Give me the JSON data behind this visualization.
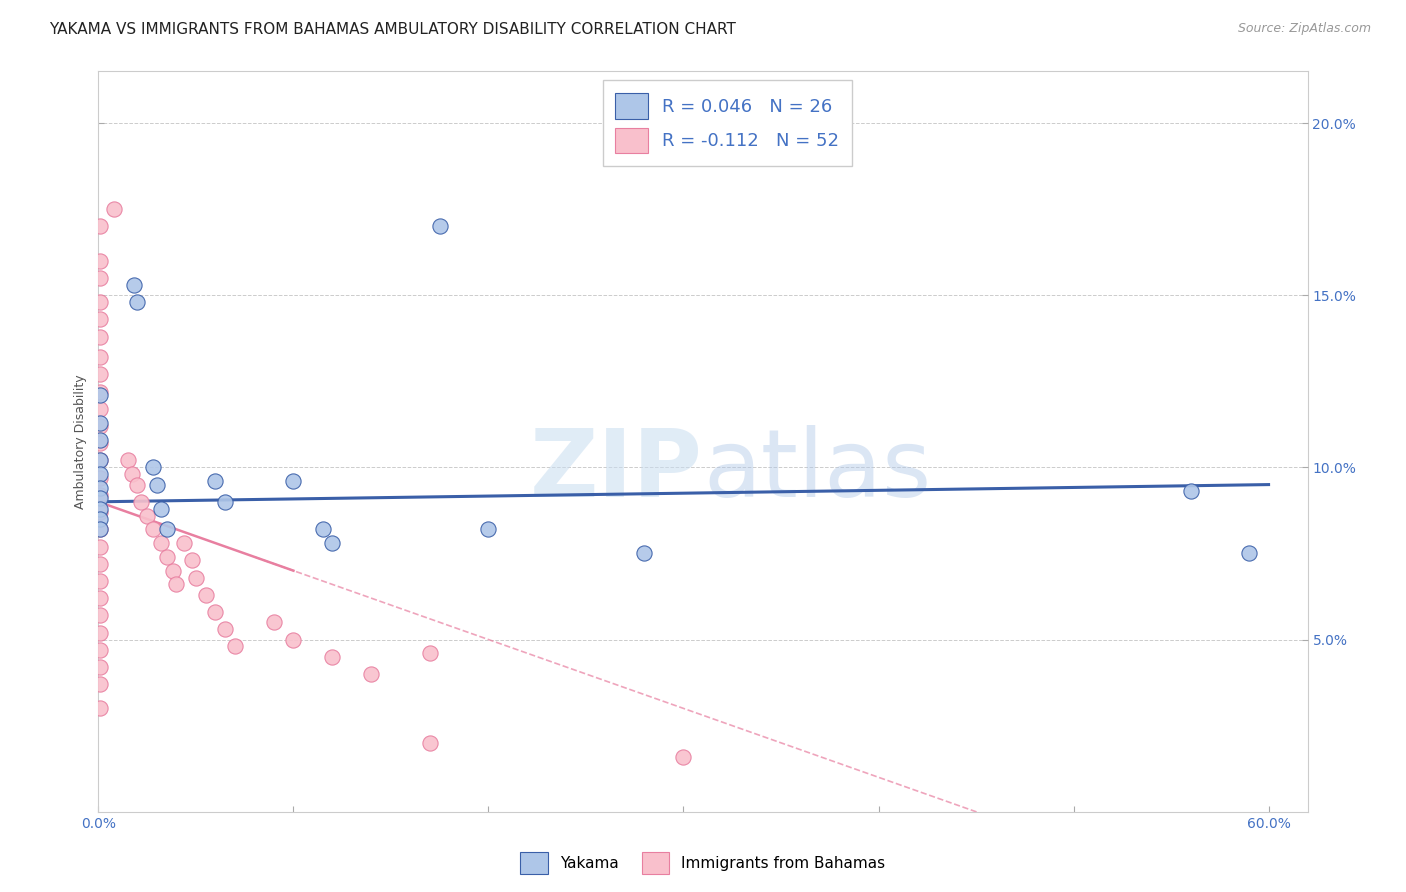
{
  "title": "YAKAMA VS IMMIGRANTS FROM BAHAMAS AMBULATORY DISABILITY CORRELATION CHART",
  "source": "Source: ZipAtlas.com",
  "ylabel": "Ambulatory Disability",
  "yakama_R": 0.046,
  "yakama_N": 26,
  "bahamas_R": -0.112,
  "bahamas_N": 52,
  "yakama_color": "#aec6e8",
  "bahamas_color": "#f9c0cc",
  "trendline_yakama_color": "#3a5fa8",
  "trendline_bahamas_color": "#e87fa0",
  "watermark_zip": "ZIP",
  "watermark_atlas": "atlas",
  "yakama_points": [
    [
      0.001,
      0.121
    ],
    [
      0.001,
      0.113
    ],
    [
      0.001,
      0.108
    ],
    [
      0.001,
      0.102
    ],
    [
      0.001,
      0.098
    ],
    [
      0.001,
      0.094
    ],
    [
      0.001,
      0.091
    ],
    [
      0.001,
      0.088
    ],
    [
      0.001,
      0.085
    ],
    [
      0.001,
      0.082
    ],
    [
      0.018,
      0.153
    ],
    [
      0.02,
      0.148
    ],
    [
      0.028,
      0.1
    ],
    [
      0.03,
      0.095
    ],
    [
      0.032,
      0.088
    ],
    [
      0.035,
      0.082
    ],
    [
      0.06,
      0.096
    ],
    [
      0.065,
      0.09
    ],
    [
      0.1,
      0.096
    ],
    [
      0.115,
      0.082
    ],
    [
      0.12,
      0.078
    ],
    [
      0.175,
      0.17
    ],
    [
      0.2,
      0.082
    ],
    [
      0.28,
      0.075
    ],
    [
      0.56,
      0.093
    ],
    [
      0.59,
      0.075
    ]
  ],
  "bahamas_points": [
    [
      0.001,
      0.17
    ],
    [
      0.001,
      0.16
    ],
    [
      0.001,
      0.155
    ],
    [
      0.001,
      0.148
    ],
    [
      0.001,
      0.143
    ],
    [
      0.001,
      0.138
    ],
    [
      0.001,
      0.132
    ],
    [
      0.001,
      0.127
    ],
    [
      0.001,
      0.122
    ],
    [
      0.001,
      0.117
    ],
    [
      0.001,
      0.112
    ],
    [
      0.001,
      0.107
    ],
    [
      0.001,
      0.102
    ],
    [
      0.001,
      0.097
    ],
    [
      0.001,
      0.092
    ],
    [
      0.001,
      0.087
    ],
    [
      0.001,
      0.082
    ],
    [
      0.001,
      0.077
    ],
    [
      0.001,
      0.072
    ],
    [
      0.001,
      0.067
    ],
    [
      0.001,
      0.062
    ],
    [
      0.001,
      0.057
    ],
    [
      0.001,
      0.052
    ],
    [
      0.001,
      0.047
    ],
    [
      0.001,
      0.042
    ],
    [
      0.001,
      0.037
    ],
    [
      0.001,
      0.03
    ],
    [
      0.008,
      0.175
    ],
    [
      0.015,
      0.102
    ],
    [
      0.017,
      0.098
    ],
    [
      0.02,
      0.095
    ],
    [
      0.022,
      0.09
    ],
    [
      0.025,
      0.086
    ],
    [
      0.028,
      0.082
    ],
    [
      0.032,
      0.078
    ],
    [
      0.035,
      0.074
    ],
    [
      0.038,
      0.07
    ],
    [
      0.04,
      0.066
    ],
    [
      0.044,
      0.078
    ],
    [
      0.048,
      0.073
    ],
    [
      0.05,
      0.068
    ],
    [
      0.055,
      0.063
    ],
    [
      0.06,
      0.058
    ],
    [
      0.065,
      0.053
    ],
    [
      0.07,
      0.048
    ],
    [
      0.09,
      0.055
    ],
    [
      0.1,
      0.05
    ],
    [
      0.12,
      0.045
    ],
    [
      0.14,
      0.04
    ],
    [
      0.17,
      0.046
    ],
    [
      0.17,
      0.02
    ],
    [
      0.3,
      0.016
    ]
  ],
  "xlim": [
    0.0,
    0.62
  ],
  "ylim": [
    0.0,
    0.215
  ],
  "yticks": [
    0.05,
    0.1,
    0.15,
    0.2
  ],
  "ytick_labels": [
    "5.0%",
    "10.0%",
    "15.0%",
    "20.0%"
  ],
  "xticks": [
    0.0,
    0.1,
    0.2,
    0.3,
    0.4,
    0.5,
    0.6
  ],
  "title_fontsize": 11,
  "source_fontsize": 9,
  "axis_label_fontsize": 9,
  "tick_label_fontsize": 10
}
